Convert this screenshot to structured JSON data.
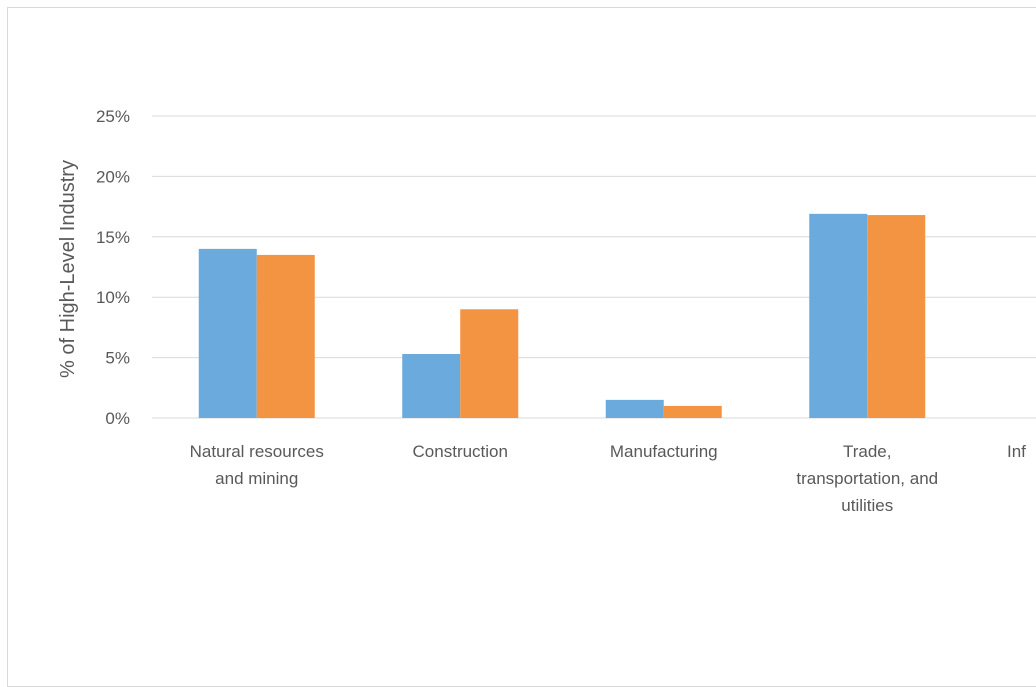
{
  "chart_data": {
    "type": "bar",
    "ylabel": "% of High-Level Industry",
    "xlabel": "",
    "ylim": [
      0,
      25
    ],
    "y_ticks": [
      "0%",
      "5%",
      "10%",
      "15%",
      "20%",
      "25%"
    ],
    "y_tick_values": [
      0,
      5,
      10,
      15,
      20,
      25
    ],
    "categories": [
      [
        "Natural resources",
        "and mining"
      ],
      [
        "Construction"
      ],
      [
        "Manufacturing"
      ],
      [
        "Trade,",
        "transportation, and",
        "utilities"
      ],
      [
        "Inf"
      ]
    ],
    "series": [
      {
        "color": "#6aaadc",
        "values": [
          14.0,
          5.3,
          1.5,
          16.9,
          null
        ]
      },
      {
        "color": "#f39443",
        "values": [
          13.5,
          9.0,
          1.0,
          16.8,
          null
        ]
      }
    ],
    "grid": true,
    "gridline_color": "#d9d9d9",
    "text_color": "#595959"
  }
}
